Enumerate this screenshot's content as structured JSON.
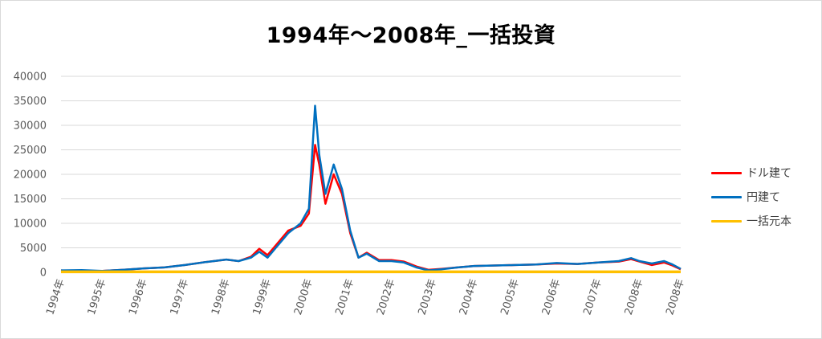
{
  "chart_data": {
    "type": "line",
    "title": "1994年～2008年_一括投資",
    "ylim": [
      0,
      40000
    ],
    "yticks": [
      0,
      5000,
      10000,
      15000,
      20000,
      25000,
      30000,
      35000,
      40000
    ],
    "x_tick_labels": [
      "1994年",
      "1995年",
      "1996年",
      "1997年",
      "1998年",
      "1999年",
      "2000年",
      "2001年",
      "2002年",
      "2003年",
      "2004年",
      "2005年",
      "2006年",
      "2007年",
      "2008年",
      "2008年"
    ],
    "grid": true,
    "legend_position": "right",
    "x_unit": "year",
    "series": [
      {
        "name": "ドル建て",
        "color": "#ff0000",
        "points": [
          [
            1994.0,
            400
          ],
          [
            1994.3,
            300
          ],
          [
            1994.6,
            100
          ],
          [
            1995.0,
            300
          ],
          [
            1995.5,
            500
          ],
          [
            1996.0,
            800
          ],
          [
            1996.5,
            1000
          ],
          [
            1997.0,
            1500
          ],
          [
            1997.5,
            2100
          ],
          [
            1998.0,
            2600
          ],
          [
            1998.3,
            2300
          ],
          [
            1998.6,
            3200
          ],
          [
            1998.8,
            4800
          ],
          [
            1999.0,
            3500
          ],
          [
            1999.2,
            5500
          ],
          [
            1999.5,
            8500
          ],
          [
            1999.8,
            9500
          ],
          [
            2000.0,
            12000
          ],
          [
            2000.15,
            26000
          ],
          [
            2000.25,
            22000
          ],
          [
            2000.4,
            14000
          ],
          [
            2000.6,
            20000
          ],
          [
            2000.8,
            16000
          ],
          [
            2001.0,
            8000
          ],
          [
            2001.2,
            3000
          ],
          [
            2001.4,
            4000
          ],
          [
            2001.7,
            2500
          ],
          [
            2002.0,
            2500
          ],
          [
            2002.3,
            2200
          ],
          [
            2002.6,
            1200
          ],
          [
            2002.9,
            500
          ],
          [
            2003.2,
            700
          ],
          [
            2003.6,
            1000
          ],
          [
            2004.0,
            1300
          ],
          [
            2004.5,
            1400
          ],
          [
            2005.0,
            1500
          ],
          [
            2005.5,
            1600
          ],
          [
            2006.0,
            1800
          ],
          [
            2006.5,
            1700
          ],
          [
            2007.0,
            2000
          ],
          [
            2007.5,
            2200
          ],
          [
            2007.8,
            2700
          ],
          [
            2008.0,
            2200
          ],
          [
            2008.3,
            1500
          ],
          [
            2008.6,
            2000
          ],
          [
            2008.8,
            1400
          ],
          [
            2009.0,
            600
          ]
        ]
      },
      {
        "name": "円建て",
        "color": "#0070c0",
        "points": [
          [
            1994.0,
            400
          ],
          [
            1994.5,
            450
          ],
          [
            1995.0,
            300
          ],
          [
            1995.5,
            500
          ],
          [
            1996.0,
            800
          ],
          [
            1996.5,
            1000
          ],
          [
            1997.0,
            1500
          ],
          [
            1997.5,
            2100
          ],
          [
            1998.0,
            2600
          ],
          [
            1998.3,
            2300
          ],
          [
            1998.6,
            3000
          ],
          [
            1998.8,
            4200
          ],
          [
            1999.0,
            3000
          ],
          [
            1999.2,
            5000
          ],
          [
            1999.5,
            8000
          ],
          [
            1999.8,
            10000
          ],
          [
            2000.0,
            13000
          ],
          [
            2000.15,
            34000
          ],
          [
            2000.25,
            24000
          ],
          [
            2000.4,
            16000
          ],
          [
            2000.6,
            22000
          ],
          [
            2000.8,
            17000
          ],
          [
            2001.0,
            8500
          ],
          [
            2001.2,
            3000
          ],
          [
            2001.4,
            3800
          ],
          [
            2001.7,
            2300
          ],
          [
            2002.0,
            2300
          ],
          [
            2002.3,
            2000
          ],
          [
            2002.6,
            1000
          ],
          [
            2002.9,
            400
          ],
          [
            2003.2,
            600
          ],
          [
            2003.6,
            1000
          ],
          [
            2004.0,
            1300
          ],
          [
            2004.5,
            1400
          ],
          [
            2005.0,
            1500
          ],
          [
            2005.5,
            1600
          ],
          [
            2006.0,
            1900
          ],
          [
            2006.5,
            1700
          ],
          [
            2007.0,
            2000
          ],
          [
            2007.5,
            2300
          ],
          [
            2007.8,
            2900
          ],
          [
            2008.0,
            2300
          ],
          [
            2008.3,
            1800
          ],
          [
            2008.6,
            2300
          ],
          [
            2008.8,
            1600
          ],
          [
            2009.0,
            700
          ]
        ]
      },
      {
        "name": "一括元本",
        "color": "#ffc000",
        "points": [
          [
            1994.0,
            100
          ],
          [
            2009.0,
            100
          ]
        ]
      }
    ]
  }
}
